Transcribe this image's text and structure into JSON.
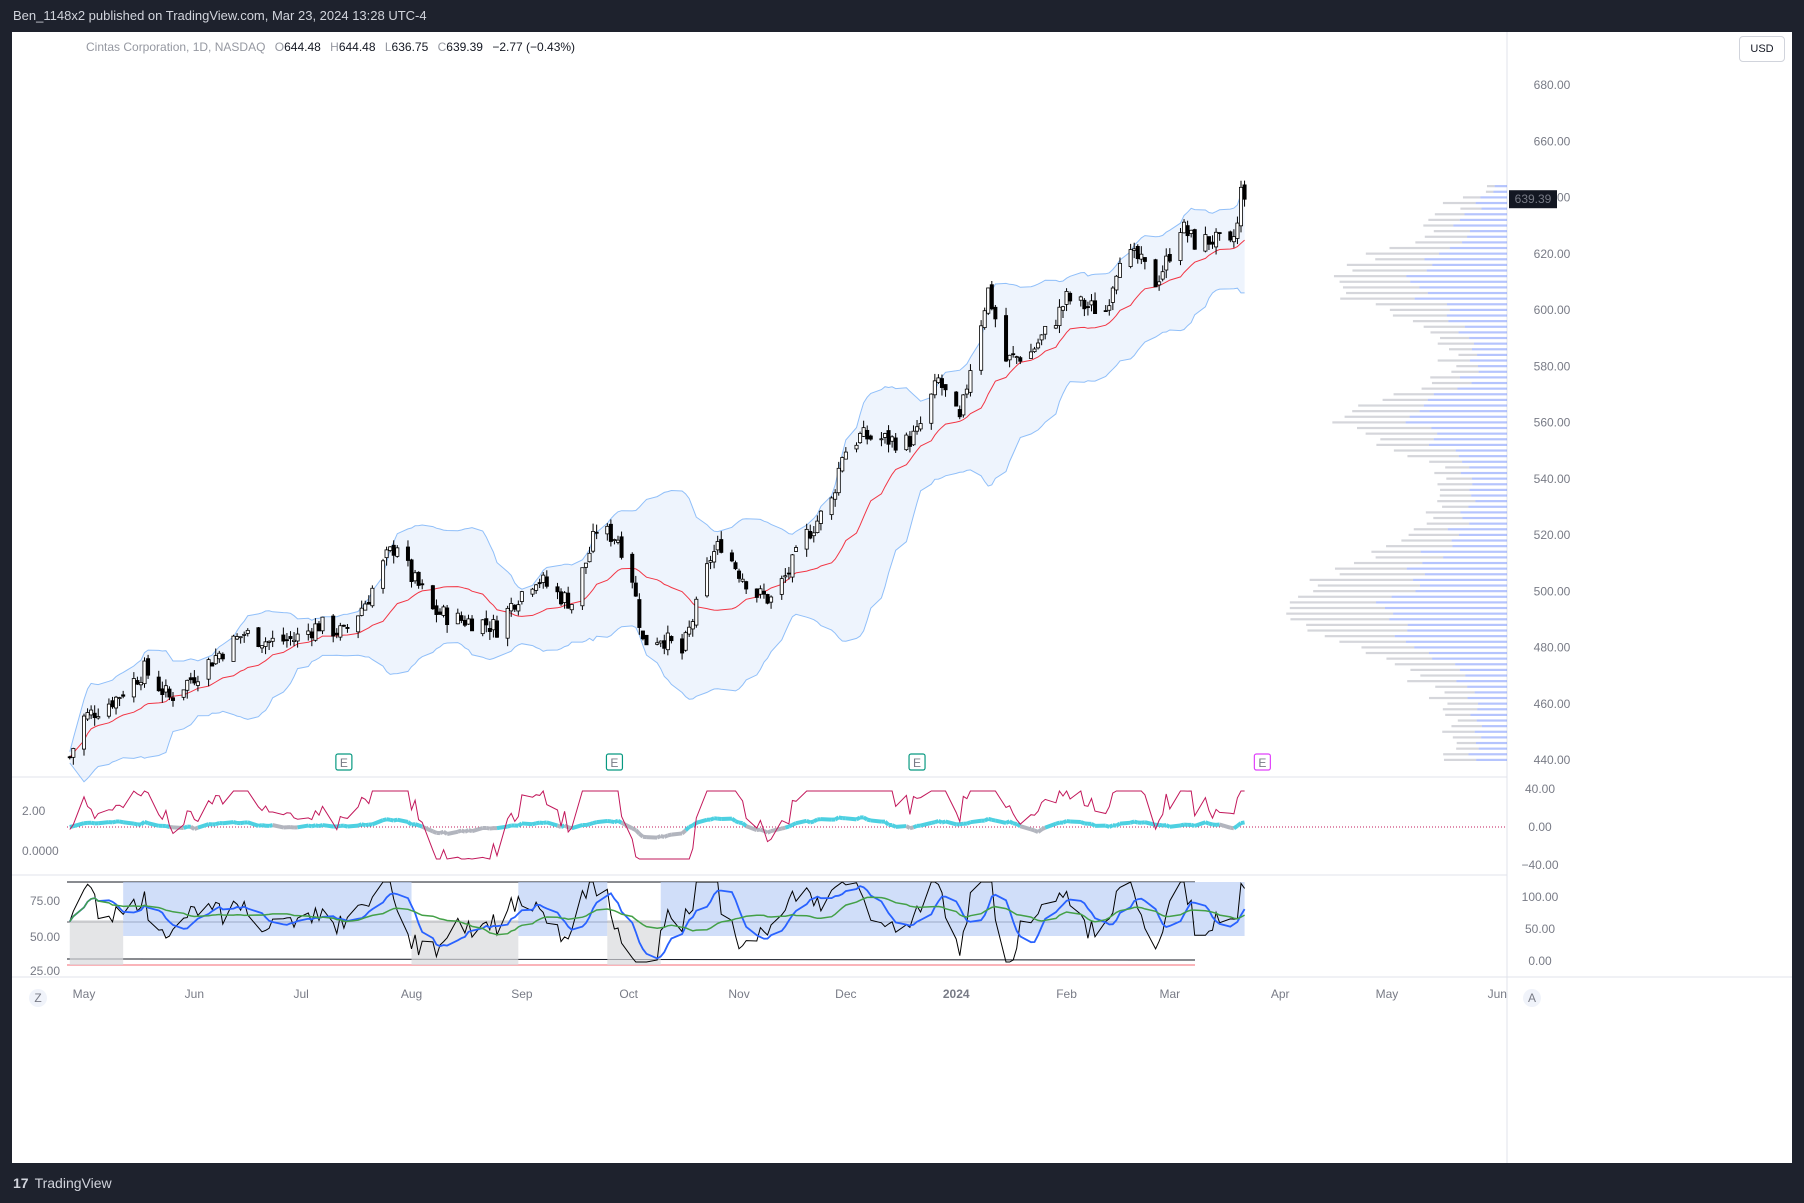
{
  "publisher": "Ben_1148x2 published on TradingView.com, Mar 23, 2024 13:28 UTC-4",
  "brand": "TradingView",
  "legend": {
    "symbol": "Cintas Corporation, 1D, NASDAQ",
    "o_label": "O",
    "o": "644.48",
    "h_label": "H",
    "h": "644.48",
    "l_label": "L",
    "l": "636.75",
    "c_label": "C",
    "c": "639.39",
    "change": "−2.77 (−0.43%)"
  },
  "currency": "USD",
  "last_price_label": "639.39",
  "corner_left": "Z",
  "corner_right": "A",
  "earnings_marker": "E",
  "colors": {
    "up": "#ffffff",
    "down": "#000000",
    "ma": "#f23645",
    "band": "#90bff9",
    "cci": "#c2185b",
    "wave_up": "#4dd0e1",
    "wave_dn": "#b2b5be",
    "rsi_blue": "#2962ff",
    "rsi_green": "#43a047",
    "vp_up": "#5b7cfa",
    "vp_dn": "#b2b5be"
  },
  "chart_data": [
    {
      "type": "candlestick",
      "title": "Cintas Corporation, 1D, NASDAQ",
      "ylim": [
        435,
        690
      ],
      "y_ticks": [
        "680.00",
        "660.00",
        "640.00",
        "620.00",
        "600.00",
        "580.00",
        "560.00",
        "540.00",
        "520.00",
        "500.00",
        "480.00",
        "460.00",
        "440.00"
      ],
      "x_ticks": [
        "May",
        "Jun",
        "Jul",
        "Aug",
        "Sep",
        "Oct",
        "Nov",
        "Dec",
        "2024",
        "Feb",
        "Mar",
        "Apr",
        "May",
        "Jun"
      ],
      "close_path": [
        [
          "2023-04-27",
          441
        ],
        [
          "2023-05-01",
          455
        ],
        [
          "2023-05-10",
          462
        ],
        [
          "2023-05-18",
          472
        ],
        [
          "2023-05-25",
          462
        ],
        [
          "2023-06-01",
          470
        ],
        [
          "2023-06-08",
          478
        ],
        [
          "2023-06-15",
          485
        ],
        [
          "2023-06-22",
          482
        ],
        [
          "2023-06-29",
          483
        ],
        [
          "2023-07-06",
          488
        ],
        [
          "2023-07-13",
          485
        ],
        [
          "2023-07-20",
          498
        ],
        [
          "2023-07-25",
          512
        ],
        [
          "2023-07-28",
          517
        ],
        [
          "2023-08-01",
          505
        ],
        [
          "2023-08-04",
          500
        ],
        [
          "2023-08-07",
          493
        ],
        [
          "2023-08-14",
          490
        ],
        [
          "2023-08-21",
          489
        ],
        [
          "2023-08-25",
          487
        ],
        [
          "2023-08-30",
          497
        ],
        [
          "2023-09-05",
          505
        ],
        [
          "2023-09-11",
          499
        ],
        [
          "2023-09-15",
          496
        ],
        [
          "2023-09-20",
          514
        ],
        [
          "2023-09-22",
          522
        ],
        [
          "2023-09-28",
          519
        ],
        [
          "2023-10-02",
          505
        ],
        [
          "2023-10-05",
          482
        ],
        [
          "2023-10-10",
          484
        ],
        [
          "2023-10-16",
          478
        ],
        [
          "2023-10-20",
          494
        ],
        [
          "2023-10-24",
          512
        ],
        [
          "2023-10-27",
          517
        ],
        [
          "2023-11-01",
          507
        ],
        [
          "2023-11-06",
          499
        ],
        [
          "2023-11-10",
          497
        ],
        [
          "2023-11-15",
          507
        ],
        [
          "2023-11-20",
          520
        ],
        [
          "2023-11-27",
          532
        ],
        [
          "2023-11-30",
          549
        ],
        [
          "2023-12-05",
          555
        ],
        [
          "2023-12-12",
          554
        ],
        [
          "2023-12-18",
          553
        ],
        [
          "2023-12-21",
          556
        ],
        [
          "2023-12-27",
          575
        ],
        [
          "2024-01-02",
          560
        ],
        [
          "2024-01-05",
          580
        ],
        [
          "2024-01-10",
          607
        ],
        [
          "2024-01-15",
          582
        ],
        [
          "2024-01-22",
          585
        ],
        [
          "2024-01-29",
          597
        ],
        [
          "2024-02-01",
          604
        ],
        [
          "2024-02-07",
          601
        ],
        [
          "2024-02-12",
          600
        ],
        [
          "2024-02-16",
          620
        ],
        [
          "2024-02-21",
          618
        ],
        [
          "2024-02-26",
          610
        ],
        [
          "2024-02-29",
          617
        ],
        [
          "2024-03-04",
          630
        ],
        [
          "2024-03-08",
          624
        ],
        [
          "2024-03-13",
          625
        ],
        [
          "2024-03-18",
          622
        ],
        [
          "2024-03-20",
          630
        ],
        [
          "2024-03-21",
          642
        ],
        [
          "2024-03-22",
          639.39
        ]
      ],
      "overlays": [
        "Bollinger Bands",
        "Moving Average"
      ],
      "volume_profile_range": [
        440,
        645
      ],
      "earnings": [
        "2023-07-13",
        "2023-09-27",
        "2023-12-21",
        "2024-03-27"
      ]
    },
    {
      "type": "line",
      "panel": "oscillator 1",
      "left_ticks": [
        "2.00",
        "0.0000"
      ],
      "right_ticks": [
        "40.00",
        "0.00",
        "−40.00"
      ],
      "ylim": [
        -45,
        45
      ]
    },
    {
      "type": "line",
      "panel": "oscillator 2",
      "left_ticks": [
        "75.00",
        "50.00",
        "25.00"
      ],
      "right_ticks": [
        "100.00",
        "50.00",
        "0.00"
      ],
      "ylim": [
        15,
        105
      ]
    }
  ]
}
